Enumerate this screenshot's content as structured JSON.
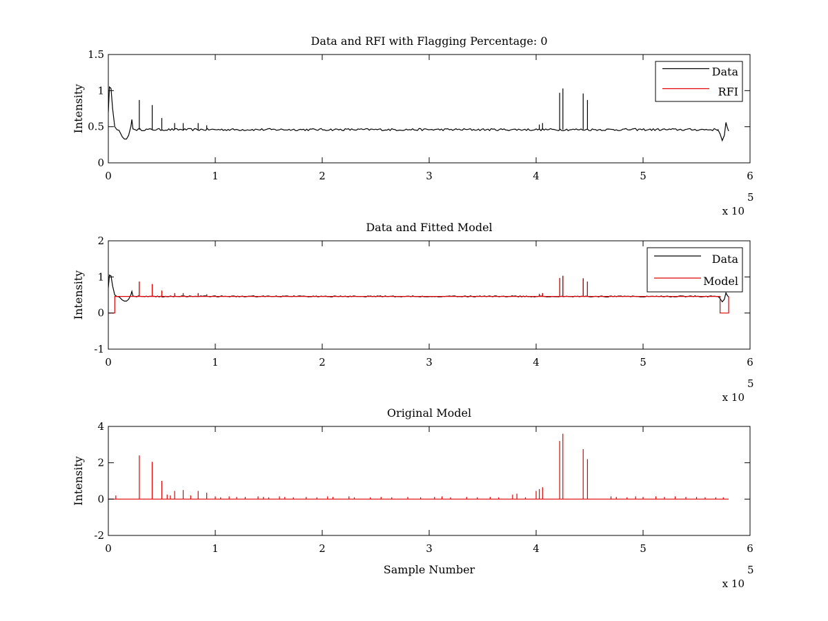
{
  "figure": {
    "background": "#ffffff"
  },
  "colors": {
    "data": "#000000",
    "rfi": "#e00000",
    "axis": "#000000"
  },
  "chart_data": [
    {
      "type": "line",
      "title": "Data and RFI with Flagging Percentage: 0",
      "xlabel": "",
      "ylabel": "Intensity",
      "xlim": [
        0,
        600000
      ],
      "ylim": [
        0,
        1.5
      ],
      "x_ticks": [
        "0",
        "1",
        "2",
        "3",
        "4",
        "5",
        "6"
      ],
      "y_ticks": [
        "0",
        "0.5",
        "1",
        "1.5"
      ],
      "x_exponent": {
        "base": "x 10",
        "power": "5"
      },
      "legend": {
        "position": "top-right",
        "entries": [
          {
            "name": "Data",
            "color": "#000000"
          },
          {
            "name": "RFI",
            "color": "#e00000"
          }
        ]
      },
      "baseline": 0.46,
      "x_end": 580000,
      "edge_points_start": [
        [
          0,
          0.7
        ],
        [
          1000,
          1.05
        ],
        [
          2500,
          1.03
        ],
        [
          4000,
          0.75
        ],
        [
          6000,
          0.5
        ],
        [
          8000,
          0.46
        ],
        [
          10000,
          0.45
        ],
        [
          13000,
          0.36
        ],
        [
          15000,
          0.33
        ],
        [
          17000,
          0.33
        ],
        [
          19000,
          0.38
        ],
        [
          21000,
          0.5
        ],
        [
          22000,
          0.6
        ],
        [
          23000,
          0.47
        ],
        [
          25000,
          0.46
        ]
      ],
      "edge_points_end": [
        [
          570000,
          0.46
        ],
        [
          572000,
          0.4
        ],
        [
          574000,
          0.31
        ],
        [
          576000,
          0.38
        ],
        [
          577500,
          0.56
        ],
        [
          578500,
          0.5
        ],
        [
          580000,
          0.44
        ]
      ],
      "spikes": [
        [
          29000,
          0.87
        ],
        [
          41000,
          0.8
        ],
        [
          50000,
          0.62
        ],
        [
          62000,
          0.55
        ],
        [
          70000,
          0.55
        ],
        [
          84000,
          0.55
        ],
        [
          92000,
          0.52
        ],
        [
          403000,
          0.53
        ],
        [
          406000,
          0.55
        ],
        [
          422000,
          0.97
        ],
        [
          425000,
          1.03
        ],
        [
          444000,
          0.96
        ],
        [
          448000,
          0.87
        ]
      ],
      "series": [
        {
          "name": "Data",
          "color": "#000000"
        },
        {
          "name": "RFI",
          "color": "#e00000"
        }
      ]
    },
    {
      "type": "line",
      "title": "Data and Fitted Model",
      "xlabel": "",
      "ylabel": "Intensity",
      "xlim": [
        0,
        600000
      ],
      "ylim": [
        -1,
        2
      ],
      "x_ticks": [
        "0",
        "1",
        "2",
        "3",
        "4",
        "5",
        "6"
      ],
      "y_ticks": [
        "-1",
        "0",
        "1",
        "2"
      ],
      "x_exponent": {
        "base": "x 10",
        "power": "5"
      },
      "legend": {
        "position": "top-right",
        "entries": [
          {
            "name": "Data",
            "color": "#000000"
          },
          {
            "name": "Model",
            "color": "#e00000"
          }
        ]
      },
      "baseline": 0.46,
      "x_end": 580000,
      "model_zero_ranges": [
        [
          0,
          6000
        ],
        [
          572000,
          580000
        ]
      ],
      "edge_points_start": [
        [
          0,
          0.7
        ],
        [
          1000,
          1.05
        ],
        [
          2500,
          1.03
        ],
        [
          4000,
          0.75
        ],
        [
          6000,
          0.5
        ],
        [
          8000,
          0.46
        ],
        [
          10000,
          0.45
        ],
        [
          13000,
          0.36
        ],
        [
          15000,
          0.33
        ],
        [
          17000,
          0.33
        ],
        [
          19000,
          0.38
        ],
        [
          21000,
          0.5
        ],
        [
          22000,
          0.6
        ],
        [
          23000,
          0.47
        ],
        [
          25000,
          0.46
        ]
      ],
      "edge_points_end": [
        [
          570000,
          0.46
        ],
        [
          572000,
          0.4
        ],
        [
          574000,
          0.31
        ],
        [
          576000,
          0.38
        ],
        [
          577500,
          0.56
        ],
        [
          578500,
          0.5
        ],
        [
          580000,
          0.44
        ]
      ],
      "spikes": [
        [
          29000,
          0.87
        ],
        [
          41000,
          0.8
        ],
        [
          50000,
          0.62
        ],
        [
          62000,
          0.55
        ],
        [
          70000,
          0.55
        ],
        [
          84000,
          0.55
        ],
        [
          92000,
          0.52
        ],
        [
          403000,
          0.53
        ],
        [
          406000,
          0.55
        ],
        [
          422000,
          0.97
        ],
        [
          425000,
          1.03
        ],
        [
          444000,
          0.96
        ],
        [
          448000,
          0.87
        ]
      ],
      "series": [
        {
          "name": "Data",
          "color": "#000000"
        },
        {
          "name": "Model",
          "color": "#e00000"
        }
      ]
    },
    {
      "type": "line",
      "title": "Original Model",
      "xlabel": "Sample Number",
      "ylabel": "Intensity",
      "xlim": [
        0,
        600000
      ],
      "ylim": [
        -2,
        4
      ],
      "x_ticks": [
        "0",
        "1",
        "2",
        "3",
        "4",
        "5",
        "6"
      ],
      "y_ticks": [
        "-2",
        "0",
        "2",
        "4"
      ],
      "x_exponent": {
        "base": "x 10",
        "power": "5"
      },
      "baseline": 0.0,
      "x_end": 580000,
      "spikes": [
        [
          7000,
          0.2
        ],
        [
          29000,
          2.4
        ],
        [
          41000,
          2.05
        ],
        [
          50000,
          1.0
        ],
        [
          55000,
          0.25
        ],
        [
          58000,
          0.2
        ],
        [
          62000,
          0.45
        ],
        [
          70000,
          0.5
        ],
        [
          77000,
          0.2
        ],
        [
          84000,
          0.45
        ],
        [
          92000,
          0.35
        ],
        [
          100000,
          0.15
        ],
        [
          105000,
          0.1
        ],
        [
          113000,
          0.15
        ],
        [
          120000,
          0.12
        ],
        [
          128000,
          0.12
        ],
        [
          140000,
          0.15
        ],
        [
          145000,
          0.12
        ],
        [
          150000,
          0.1
        ],
        [
          160000,
          0.15
        ],
        [
          165000,
          0.12
        ],
        [
          173000,
          0.1
        ],
        [
          185000,
          0.12
        ],
        [
          195000,
          0.1
        ],
        [
          205000,
          0.15
        ],
        [
          210000,
          0.12
        ],
        [
          225000,
          0.15
        ],
        [
          230000,
          0.1
        ],
        [
          245000,
          0.1
        ],
        [
          255000,
          0.12
        ],
        [
          265000,
          0.1
        ],
        [
          280000,
          0.12
        ],
        [
          292000,
          0.1
        ],
        [
          305000,
          0.12
        ],
        [
          312000,
          0.15
        ],
        [
          320000,
          0.1
        ],
        [
          335000,
          0.12
        ],
        [
          345000,
          0.1
        ],
        [
          357000,
          0.12
        ],
        [
          365000,
          0.1
        ],
        [
          378000,
          0.25
        ],
        [
          382000,
          0.3
        ],
        [
          390000,
          0.1
        ],
        [
          400000,
          0.45
        ],
        [
          403000,
          0.55
        ],
        [
          406000,
          0.65
        ],
        [
          422000,
          3.2
        ],
        [
          425000,
          3.6
        ],
        [
          444000,
          2.75
        ],
        [
          448000,
          2.2
        ],
        [
          470000,
          0.15
        ],
        [
          475000,
          0.12
        ],
        [
          485000,
          0.1
        ],
        [
          493000,
          0.15
        ],
        [
          500000,
          0.12
        ],
        [
          512000,
          0.15
        ],
        [
          520000,
          0.12
        ],
        [
          530000,
          0.15
        ],
        [
          540000,
          0.12
        ],
        [
          550000,
          0.12
        ],
        [
          558000,
          0.1
        ],
        [
          568000,
          0.1
        ],
        [
          575000,
          0.1
        ]
      ],
      "series": [
        {
          "name": "Original Model",
          "color": "#e00000"
        }
      ]
    }
  ]
}
